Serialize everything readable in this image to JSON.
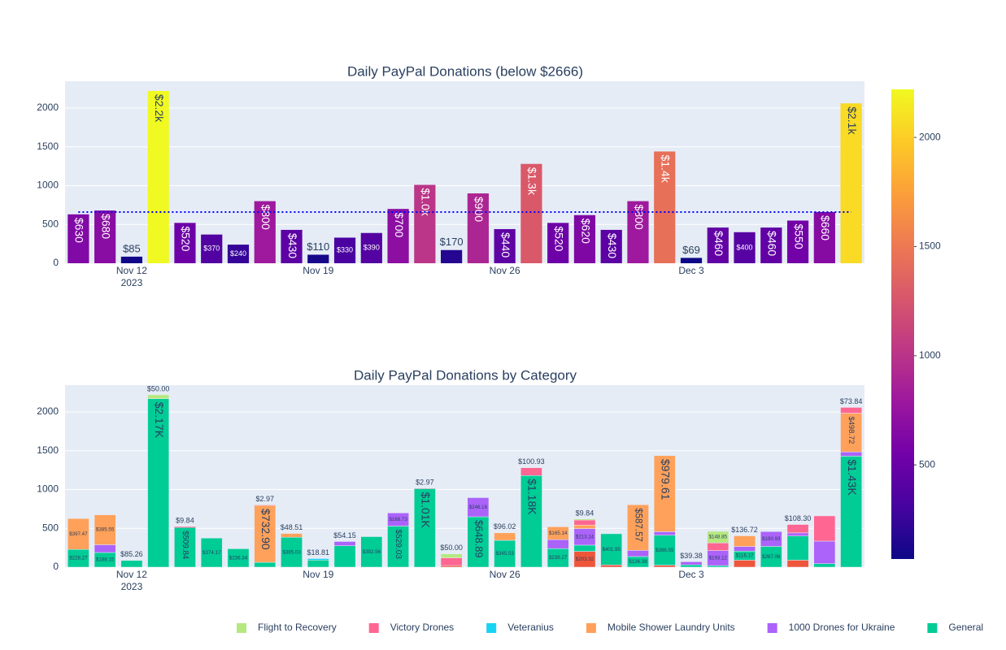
{
  "chart_data": [
    {
      "type": "bar",
      "title": "Daily PayPal Donations (below $2666)",
      "x": [
        "2023-11-10",
        "2023-11-11",
        "2023-11-12",
        "2023-11-13",
        "2023-11-14",
        "2023-11-15",
        "2023-11-16",
        "2023-11-17",
        "2023-11-18",
        "2023-11-19",
        "2023-11-20",
        "2023-11-21",
        "2023-11-22",
        "2023-11-23",
        "2023-11-24",
        "2023-11-25",
        "2023-11-26",
        "2023-11-27",
        "2023-11-28",
        "2023-11-29",
        "2023-11-30",
        "2023-12-01",
        "2023-12-02",
        "2023-12-03",
        "2023-12-04",
        "2023-12-05",
        "2023-12-06",
        "2023-12-07",
        "2023-12-08",
        "2023-12-09"
      ],
      "values": [
        630,
        680,
        85,
        2220,
        520,
        370,
        240,
        800,
        430,
        110,
        330,
        390,
        700,
        1010,
        170,
        900,
        440,
        1280,
        520,
        620,
        430,
        800,
        1440,
        69,
        460,
        400,
        460,
        550,
        660,
        2060
      ],
      "value_labels": [
        "$630",
        "$680",
        "$85",
        "$2.2k",
        "$520",
        "$370",
        "$240",
        "$800",
        "$430",
        "$110",
        "$330",
        "$390",
        "$700",
        "$1.0k",
        "$170",
        "$900",
        "$440",
        "$1.3k",
        "$520",
        "$620",
        "$430",
        "$800",
        "$1.4k",
        "$69",
        "$460",
        "$400",
        "$460",
        "$550",
        "$660",
        "$2.1k"
      ],
      "colorscale": [
        "#0d0887",
        "#46039f",
        "#7201a8",
        "#9c179e",
        "#bd3786",
        "#d8576b",
        "#ed7953",
        "#fb9f3a",
        "#fdca26",
        "#f0f921"
      ],
      "colorbar_ticks": [
        500,
        1000,
        1500,
        2000
      ],
      "reference_line": {
        "value": 659,
        "color": "#0000ff",
        "dash": "dot"
      },
      "xlim": [
        "2023-11-09T12:00:00Z",
        "2023-12-09T12:00:00Z"
      ],
      "xticks": [
        {
          "value": "2023-11-12",
          "label": "Nov 12"
        },
        {
          "value": "2023-11-19",
          "label": "Nov 19"
        },
        {
          "value": "2023-11-26",
          "label": "Nov 26"
        },
        {
          "value": "2023-12-03",
          "label": "Dec 3"
        }
      ],
      "x_year_label": "2023",
      "ylim": [
        0,
        2345
      ],
      "yticks": [
        0,
        500,
        1000,
        1500,
        2000
      ],
      "grid": true
    },
    {
      "type": "stacked_bar",
      "title": "Daily PayPal Donations by Category",
      "x": [
        "2023-11-10",
        "2023-11-11",
        "2023-11-12",
        "2023-11-13",
        "2023-11-14",
        "2023-11-15",
        "2023-11-16",
        "2023-11-17",
        "2023-11-18",
        "2023-11-19",
        "2023-11-20",
        "2023-11-21",
        "2023-11-22",
        "2023-11-23",
        "2023-11-24",
        "2023-11-25",
        "2023-11-26",
        "2023-11-27",
        "2023-11-28",
        "2023-11-29",
        "2023-11-30",
        "2023-12-01",
        "2023-12-02",
        "2023-12-03",
        "2023-12-04",
        "2023-12-05",
        "2023-12-06",
        "2023-12-07",
        "2023-12-08",
        "2023-12-09"
      ],
      "series": [
        {
          "color": "#EF553B",
          "values": [
            0,
            0,
            0,
            0,
            0,
            0,
            0,
            0,
            0,
            0,
            0,
            0,
            0,
            0,
            20,
            0,
            0,
            0,
            0,
            203.32,
            28,
            0,
            25,
            0,
            0,
            90,
            0,
            90,
            0,
            0
          ],
          "value_labels": [
            null,
            null,
            null,
            null,
            null,
            null,
            null,
            null,
            null,
            null,
            null,
            null,
            null,
            null,
            null,
            null,
            null,
            null,
            null,
            "$203.32",
            null,
            null,
            null,
            null,
            null,
            null,
            null,
            null,
            null,
            null
          ]
        },
        {
          "name": "General",
          "color": "#00CC96",
          "values": [
            228.27,
            188.15,
            85.26,
            2170,
            509.84,
            374.17,
            236.34,
            62.14,
            385.03,
            91.19,
            275.85,
            392.56,
            529.03,
            1010,
            0,
            648.89,
            345.53,
            1180,
            239.27,
            80,
            401.95,
            136.38,
            386.55,
            29.62,
            20,
            116.17,
            267.06,
            311,
            45,
            1430
          ],
          "value_labels": [
            "$228.27",
            "$188.15",
            "$85.26",
            "$2.17K",
            "$509.84",
            "$374.17",
            "$236.34",
            null,
            "$385.03",
            null,
            null,
            "$392.56",
            "$529.03",
            "$1.01K",
            null,
            "$648.89",
            "$345.53",
            "$1.18K",
            "$239.27",
            null,
            "$401.95",
            "$136.38",
            "$386.55",
            null,
            null,
            "$116.17",
            "$267.06",
            null,
            null,
            "$1.43K"
          ]
        },
        {
          "name": "1000 Drones for Ukraine",
          "color": "#AB63FA",
          "values": [
            0,
            100,
            0,
            0,
            0,
            0,
            0,
            0,
            0,
            0,
            54.15,
            0,
            168.73,
            0,
            0,
            246.16,
            0,
            0,
            115,
            213.14,
            0,
            80,
            45,
            39.38,
            193.12,
            60,
            190.93,
            40,
            290,
            55
          ],
          "value_labels": [
            null,
            null,
            null,
            null,
            null,
            null,
            null,
            null,
            null,
            null,
            "$54.15",
            null,
            "$168.73",
            null,
            null,
            "$246.16",
            null,
            null,
            null,
            "$213.14",
            null,
            null,
            null,
            "$39.38",
            "$193.12",
            null,
            "$190.93",
            null,
            null,
            null
          ]
        },
        {
          "name": "Mobile Shower Laundry Units",
          "color": "#FFA15A",
          "values": [
            397.47,
            385.55,
            0,
            0,
            0,
            0,
            0,
            732.9,
            48.51,
            0,
            0,
            0,
            0,
            0,
            0,
            0,
            96.02,
            0,
            165.14,
            45,
            0,
            587.57,
            979.61,
            0,
            0,
            136.72,
            0,
            0,
            0,
            498.72
          ],
          "value_labels": [
            "$397.47",
            "$385.55",
            null,
            null,
            null,
            null,
            null,
            "$732.90",
            "$48.51",
            null,
            null,
            null,
            null,
            null,
            null,
            null,
            "$96.02",
            null,
            "$165.14",
            null,
            null,
            "$587.57",
            "$979.61",
            null,
            null,
            "$136.72",
            null,
            null,
            null,
            "$498.72"
          ]
        },
        {
          "name": "Veteranius",
          "color": "#19D3F3",
          "values": [
            0,
            0,
            0,
            0,
            0,
            0,
            0,
            0,
            0,
            18.81,
            0,
            0,
            0,
            0,
            0,
            0,
            0,
            0,
            0,
            0,
            0,
            0,
            0,
            0,
            0,
            0,
            0,
            0,
            0,
            0
          ],
          "value_labels": [
            null,
            null,
            null,
            null,
            null,
            null,
            null,
            null,
            null,
            "$18.81",
            null,
            null,
            null,
            null,
            null,
            null,
            null,
            null,
            null,
            null,
            null,
            null,
            null,
            null,
            null,
            null,
            null,
            null,
            null,
            null
          ]
        },
        {
          "name": "Victory Drones",
          "color": "#FF6692",
          "values": [
            0,
            0,
            0,
            0,
            9.84,
            0,
            0,
            2.97,
            0,
            0,
            0,
            0,
            0,
            2.97,
            100,
            0,
            0,
            100.93,
            0,
            65,
            0,
            0,
            0,
            0,
            99,
            0,
            0,
            108.3,
            325,
            73.84
          ],
          "value_labels": [
            null,
            null,
            null,
            null,
            "$9.84",
            null,
            null,
            "$2.97",
            null,
            null,
            null,
            null,
            null,
            "$2.97",
            null,
            null,
            null,
            "$100.93",
            null,
            null,
            null,
            null,
            null,
            null,
            null,
            null,
            null,
            "$108.30",
            null,
            "$73.84"
          ]
        },
        {
          "name": "Flight to Recovery",
          "color": "#B6E880",
          "values": [
            0,
            0,
            0,
            50,
            0,
            0,
            0,
            0,
            0,
            0,
            0,
            0,
            0,
            0,
            50,
            0,
            0,
            0,
            0,
            9.84,
            0,
            0,
            0,
            0,
            148.85,
            0,
            0,
            0,
            0,
            0
          ],
          "value_labels": [
            null,
            null,
            null,
            "$50.00",
            null,
            null,
            null,
            null,
            null,
            null,
            null,
            null,
            null,
            null,
            "$50.00",
            null,
            null,
            null,
            null,
            "$9.84",
            null,
            null,
            null,
            null,
            "$148.85",
            null,
            null,
            null,
            null,
            null
          ]
        }
      ],
      "xlim": [
        "2023-11-09T12:00:00Z",
        "2023-12-09T12:00:00Z"
      ],
      "xticks": [
        {
          "value": "2023-11-12",
          "label": "Nov 12"
        },
        {
          "value": "2023-11-19",
          "label": "Nov 19"
        },
        {
          "value": "2023-11-26",
          "label": "Nov 26"
        },
        {
          "value": "2023-12-03",
          "label": "Dec 3"
        }
      ],
      "x_year_label": "2023",
      "ylim": [
        0,
        2345
      ],
      "yticks": [
        0,
        500,
        1000,
        1500,
        2000
      ],
      "grid": true
    }
  ]
}
